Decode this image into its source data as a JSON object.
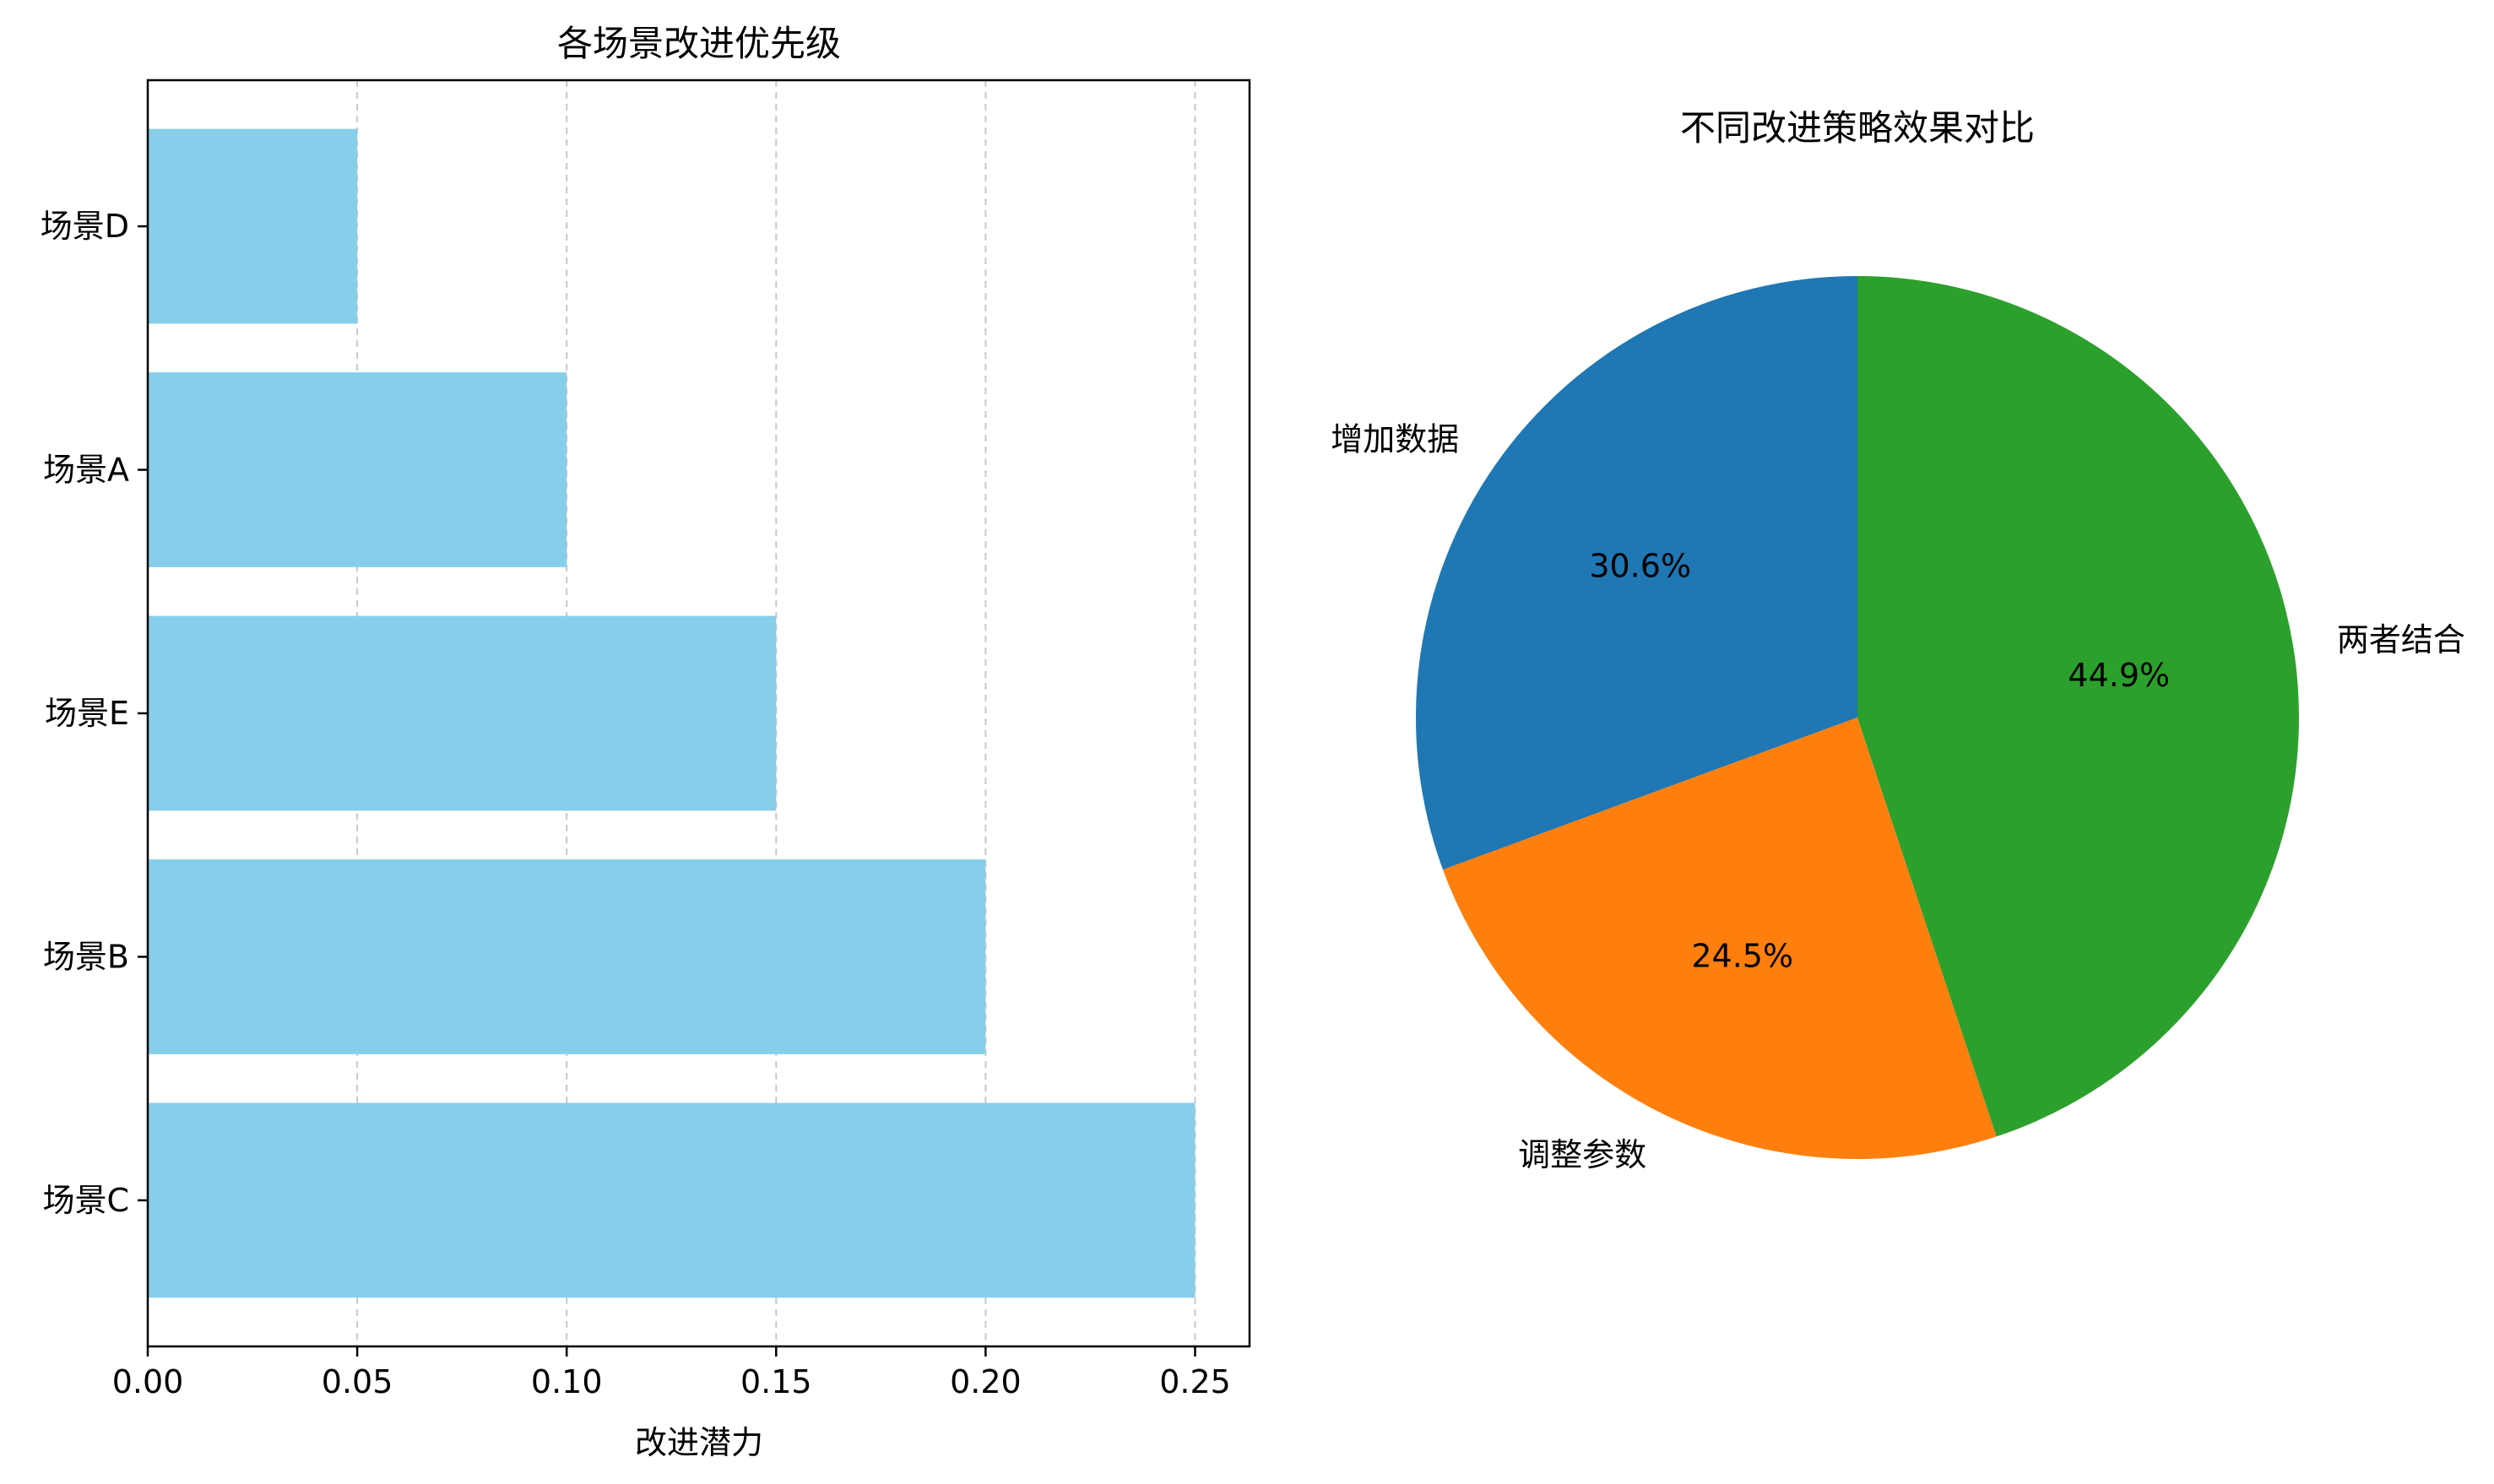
{
  "chart_data": [
    {
      "type": "bar",
      "orientation": "horizontal",
      "title": "各场景改进优先级",
      "xlabel": "改进潜力",
      "ylabel": "",
      "categories": [
        "场景C",
        "场景B",
        "场景E",
        "场景A",
        "场景D"
      ],
      "values": [
        0.25,
        0.2,
        0.15,
        0.1,
        0.05
      ],
      "xlim": [
        0,
        0.263
      ],
      "xticks": [
        "0.00",
        "0.05",
        "0.10",
        "0.15",
        "0.20",
        "0.25"
      ],
      "grid": "x-dashed",
      "bar_color": "#87ceeb"
    },
    {
      "type": "pie",
      "title": "不同改进策略效果对比",
      "slices": [
        {
          "label": "增加数据",
          "value": 30.6,
          "pct_label": "30.6%",
          "color": "#1f77b4"
        },
        {
          "label": "调整参数",
          "value": 24.5,
          "pct_label": "24.5%",
          "color": "#ff7f0e"
        },
        {
          "label": "两者结合",
          "value": 44.9,
          "pct_label": "44.9%",
          "color": "#2ca02c"
        }
      ],
      "start_angle": 90,
      "direction": "counterclockwise"
    }
  ]
}
